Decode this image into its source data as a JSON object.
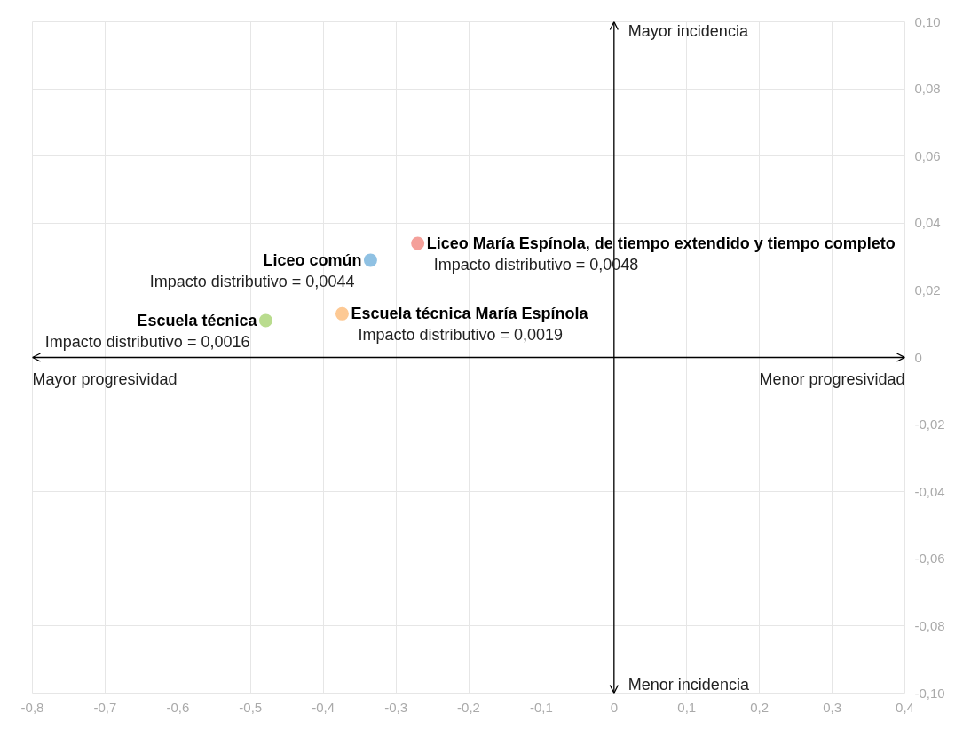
{
  "chart_data": {
    "type": "scatter",
    "series": [
      {
        "name": "Liceo María Espínola, de tiempo extendido y tiempo completo",
        "color": "#f4a09a",
        "x": [
          -0.27
        ],
        "values": [
          0.034
        ]
      },
      {
        "name": "Liceo común",
        "color": "#8fc1e3",
        "x": [
          -0.335
        ],
        "values": [
          0.029
        ]
      },
      {
        "name": "Escuela técnica María Espínola",
        "color": "#fdc994",
        "x": [
          -0.374
        ],
        "values": [
          0.013
        ]
      },
      {
        "name": "Escuela técnica",
        "color": "#b9dc8e",
        "x": [
          -0.479
        ],
        "values": [
          0.011
        ]
      }
    ],
    "annotations": [
      {
        "text": "Impacto distributivo = 0,0048",
        "x": -0.27,
        "y": 0.034
      },
      {
        "text": "Impacto distributivo = 0,0044",
        "x": -0.335,
        "y": 0.029
      },
      {
        "text": "Impacto distributivo = 0,0019",
        "x": -0.374,
        "y": 0.013
      },
      {
        "text": "Impacto distributivo = 0,0016",
        "x": -0.479,
        "y": 0.011
      },
      "Mayor incidencia",
      "Menor incidencia",
      "Mayor progresividad",
      "Menor progresividad"
    ],
    "xlim": [
      -0.8,
      0.4
    ],
    "xticks": [
      {
        "value": -0.8,
        "label": "-0,8"
      },
      {
        "value": -0.7,
        "label": "-0,7"
      },
      {
        "value": -0.6,
        "label": "-0,6"
      },
      {
        "value": -0.5,
        "label": "-0,5"
      },
      {
        "value": -0.4,
        "label": "-0,4"
      },
      {
        "value": -0.3,
        "label": "-0,3"
      },
      {
        "value": -0.2,
        "label": "-0,2"
      },
      {
        "value": -0.1,
        "label": "-0,1"
      },
      0,
      {
        "value": 0.1,
        "label": "0,1"
      },
      {
        "value": 0.2,
        "label": "0,2"
      },
      {
        "value": 0.3,
        "label": "0,3"
      },
      {
        "value": 0.4,
        "label": "0,4"
      }
    ],
    "ylim": [
      -0.1,
      0.1
    ],
    "yticks": [
      {
        "value": -0.1,
        "label": "-0,10"
      },
      {
        "value": -0.08,
        "label": "-0,08"
      },
      {
        "value": -0.06,
        "label": "-0,06"
      },
      {
        "value": -0.04,
        "label": "-0,04"
      },
      {
        "value": -0.02,
        "label": "-0,02"
      },
      0,
      {
        "value": 0.02,
        "label": "0,02"
      },
      {
        "value": 0.04,
        "label": "0,04"
      },
      {
        "value": 0.06,
        "label": "0,06"
      },
      {
        "value": 0.08,
        "label": "0,08"
      },
      {
        "value": 0.1,
        "label": "0,10"
      }
    ],
    "grid": true,
    "legend": false,
    "marker": "circle"
  }
}
